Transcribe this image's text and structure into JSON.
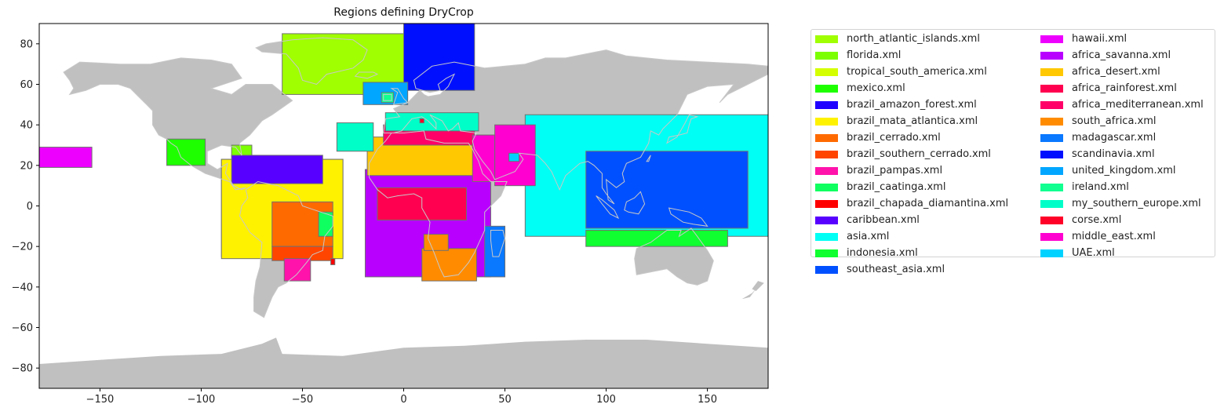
{
  "title": "Regions defining DryCrop",
  "chart_data": {
    "type": "map",
    "title": "Regions defining DryCrop",
    "xlim": [
      -180,
      180
    ],
    "ylim": [
      -90,
      90
    ],
    "xticks": [
      -150,
      -100,
      -50,
      0,
      50,
      100,
      150
    ],
    "yticks": [
      -80,
      -60,
      -40,
      -20,
      0,
      20,
      40,
      60,
      80
    ],
    "land_color": "#c0c0c0",
    "legend_placement": "outside-right",
    "regions": [
      {
        "name": "north_atlantic_islands.xml",
        "color": "#a0ff00",
        "boxes": [
          [
            -60,
            55,
            0,
            85
          ]
        ]
      },
      {
        "name": "florida.xml",
        "color": "#7cff00",
        "boxes": [
          [
            -85,
            24,
            -75,
            30
          ]
        ]
      },
      {
        "name": "tropical_south_america.xml",
        "color": "#d4ff00",
        "boxes": [
          [
            -90,
            -25,
            -30,
            23
          ]
        ]
      },
      {
        "name": "mexico.xml",
        "color": "#1eff00",
        "boxes": [
          [
            -117,
            20,
            -98,
            33
          ]
        ]
      },
      {
        "name": "brazil_amazon_forest.xml",
        "color": "#2000ff",
        "boxes": [
          [
            -55,
            -10,
            -42,
            0
          ]
        ]
      },
      {
        "name": "brazil_mata_atlantica.xml",
        "color": "#fff200",
        "boxes": [
          [
            -90,
            -26,
            -30,
            23
          ]
        ]
      },
      {
        "name": "brazil_cerrado.xml",
        "color": "#ff6a00",
        "boxes": [
          [
            -65,
            -20,
            -35,
            2
          ]
        ]
      },
      {
        "name": "brazil_southern_cerrado.xml",
        "color": "#ff4500",
        "boxes": [
          [
            -65,
            -27,
            -35,
            -20
          ]
        ]
      },
      {
        "name": "brazil_pampas.xml",
        "color": "#ff13ab",
        "boxes": [
          [
            -59,
            -37,
            -46,
            -26
          ]
        ]
      },
      {
        "name": "brazil_caatinga.xml",
        "color": "#10ff60",
        "boxes": [
          [
            -42,
            -15,
            -35,
            -3
          ]
        ]
      },
      {
        "name": "brazil_chapada_diamantina.xml",
        "color": "#ff0000",
        "boxes": [
          [
            -36,
            -29,
            -34,
            -26
          ]
        ]
      },
      {
        "name": "caribbean.xml",
        "color": "#5800ff",
        "boxes": [
          [
            -85,
            11,
            -40,
            25
          ]
        ]
      },
      {
        "name": "asia.xml",
        "color": "#00fff4",
        "boxes": [
          [
            60,
            -15,
            180,
            45
          ]
        ]
      },
      {
        "name": "indonesia.xml",
        "color": "#10ff30",
        "boxes": [
          [
            90,
            -20,
            160,
            -12
          ]
        ]
      },
      {
        "name": "southeast_asia.xml",
        "color": "#0050ff",
        "boxes": [
          [
            90,
            -11,
            170,
            27
          ]
        ]
      },
      {
        "name": "hawaii.xml",
        "color": "#ee00ff",
        "boxes": [
          [
            -180,
            19,
            -154,
            29
          ]
        ]
      },
      {
        "name": "africa_savanna.xml",
        "color": "#b800ff",
        "boxes": [
          [
            -19,
            -35,
            43,
            18
          ]
        ]
      },
      {
        "name": "africa_desert.xml",
        "color": "#ffc800",
        "boxes": [
          [
            -18,
            15,
            60,
            34
          ]
        ]
      },
      {
        "name": "africa_rainforest.xml",
        "color": "#ff0050",
        "boxes": [
          [
            -13,
            -7,
            31,
            9
          ]
        ]
      },
      {
        "name": "africa_mediterranean.xml",
        "color": "#ff0068",
        "boxes": [
          [
            -10,
            30,
            35,
            40
          ]
        ]
      },
      {
        "name": "south_africa.xml",
        "color": "#ff8c00",
        "boxes": [
          [
            9,
            -37,
            36,
            -21
          ],
          [
            10,
            -22,
            22,
            -14
          ]
        ]
      },
      {
        "name": "madagascar.xml",
        "color": "#0a78ff",
        "boxes": [
          [
            40,
            -35,
            50,
            -10
          ]
        ]
      },
      {
        "name": "scandinavia.xml",
        "color": "#0010ff",
        "boxes": [
          [
            0,
            57,
            35,
            90
          ]
        ]
      },
      {
        "name": "united_kingdom.xml",
        "color": "#00a6ff",
        "boxes": [
          [
            -20,
            50,
            2,
            61
          ]
        ]
      },
      {
        "name": "ireland.xml",
        "color": "#10ff90",
        "boxes": [
          [
            -11,
            51,
            -5,
            56
          ]
        ]
      },
      {
        "name": "my_southern_europe.xml",
        "color": "#00ffc8",
        "boxes": [
          [
            -33,
            27,
            -15,
            41
          ],
          [
            -9,
            37,
            37,
            46
          ]
        ]
      },
      {
        "name": "corse.xml",
        "color": "#ff0028",
        "boxes": [
          [
            8,
            41,
            10,
            43
          ]
        ]
      },
      {
        "name": "middle_east.xml",
        "color": "#ff00d0",
        "boxes": [
          [
            34,
            12,
            45,
            35
          ],
          [
            45,
            10,
            65,
            40
          ]
        ]
      },
      {
        "name": "UAE.xml",
        "color": "#00d2ff",
        "boxes": [
          [
            52,
            22,
            57,
            26
          ]
        ]
      }
    ]
  },
  "land": [
    [
      [
        -168,
        66
      ],
      [
        -160,
        71
      ],
      [
        -140,
        70
      ],
      [
        -125,
        70
      ],
      [
        -110,
        73
      ],
      [
        -95,
        72
      ],
      [
        -85,
        70
      ],
      [
        -80,
        63
      ],
      [
        -95,
        58
      ],
      [
        -85,
        55
      ],
      [
        -78,
        60
      ],
      [
        -65,
        60
      ],
      [
        -55,
        52
      ],
      [
        -65,
        45
      ],
      [
        -70,
        42
      ],
      [
        -76,
        35
      ],
      [
        -81,
        31
      ],
      [
        -80,
        25
      ],
      [
        -83,
        29
      ],
      [
        -90,
        30
      ],
      [
        -97,
        27
      ],
      [
        -97,
        21
      ],
      [
        -92,
        18
      ],
      [
        -87,
        21
      ],
      [
        -88,
        16
      ],
      [
        -84,
        10
      ],
      [
        -80,
        8
      ],
      [
        -78,
        9
      ],
      [
        -83,
        8
      ],
      [
        -86,
        12
      ],
      [
        -92,
        14
      ],
      [
        -98,
        16
      ],
      [
        -105,
        20
      ],
      [
        -110,
        24
      ],
      [
        -112,
        29
      ],
      [
        -115,
        31
      ],
      [
        -117,
        33
      ],
      [
        -121,
        35
      ],
      [
        -124,
        40
      ],
      [
        -124,
        47
      ],
      [
        -127,
        50
      ],
      [
        -131,
        54
      ],
      [
        -135,
        58
      ],
      [
        -141,
        60
      ],
      [
        -150,
        60
      ],
      [
        -157,
        57
      ],
      [
        -165,
        55
      ],
      [
        -163,
        58
      ],
      [
        -165,
        62
      ],
      [
        -168,
        66
      ]
    ],
    [
      [
        -78,
        8
      ],
      [
        -72,
        12
      ],
      [
        -62,
        10
      ],
      [
        -52,
        5
      ],
      [
        -50,
        0
      ],
      [
        -44,
        -2
      ],
      [
        -35,
        -5
      ],
      [
        -35,
        -10
      ],
      [
        -39,
        -15
      ],
      [
        -40,
        -22
      ],
      [
        -45,
        -24
      ],
      [
        -48,
        -28
      ],
      [
        -53,
        -34
      ],
      [
        -58,
        -38
      ],
      [
        -62,
        -40
      ],
      [
        -65,
        -45
      ],
      [
        -67,
        -50
      ],
      [
        -69,
        -55
      ],
      [
        -74,
        -52
      ],
      [
        -74,
        -45
      ],
      [
        -73,
        -37
      ],
      [
        -71,
        -30
      ],
      [
        -70,
        -18
      ],
      [
        -76,
        -13
      ],
      [
        -81,
        -5
      ],
      [
        -80,
        0
      ],
      [
        -77,
        4
      ],
      [
        -78,
        8
      ]
    ],
    [
      [
        -17,
        14
      ],
      [
        -17,
        21
      ],
      [
        -13,
        28
      ],
      [
        -9,
        32
      ],
      [
        -6,
        36
      ],
      [
        0,
        36
      ],
      [
        10,
        37
      ],
      [
        11,
        33
      ],
      [
        20,
        31
      ],
      [
        32,
        31
      ],
      [
        34,
        28
      ],
      [
        37,
        22
      ],
      [
        39,
        16
      ],
      [
        43,
        12
      ],
      [
        51,
        12
      ],
      [
        48,
        5
      ],
      [
        40,
        -3
      ],
      [
        40,
        -12
      ],
      [
        35,
        -23
      ],
      [
        32,
        -28
      ],
      [
        27,
        -34
      ],
      [
        20,
        -35
      ],
      [
        18,
        -31
      ],
      [
        15,
        -23
      ],
      [
        12,
        -16
      ],
      [
        13,
        -8
      ],
      [
        9,
        -1
      ],
      [
        9,
        4
      ],
      [
        5,
        6
      ],
      [
        -3,
        5
      ],
      [
        -8,
        4
      ],
      [
        -13,
        8
      ],
      [
        -17,
        14
      ]
    ],
    [
      [
        -10,
        36
      ],
      [
        -9,
        43
      ],
      [
        -2,
        44
      ],
      [
        -5,
        48
      ],
      [
        2,
        51
      ],
      [
        5,
        54
      ],
      [
        8,
        57
      ],
      [
        10,
        55
      ],
      [
        12,
        54
      ],
      [
        18,
        55
      ],
      [
        22,
        59
      ],
      [
        25,
        65
      ],
      [
        21,
        63
      ],
      [
        17,
        60
      ],
      [
        18,
        57
      ],
      [
        13,
        56
      ],
      [
        6,
        58
      ],
      [
        5,
        62
      ],
      [
        14,
        69
      ],
      [
        25,
        71
      ],
      [
        40,
        68
      ],
      [
        50,
        69
      ],
      [
        60,
        70
      ],
      [
        70,
        73
      ],
      [
        80,
        73
      ],
      [
        100,
        77
      ],
      [
        110,
        74
      ],
      [
        130,
        72
      ],
      [
        150,
        71
      ],
      [
        170,
        70
      ],
      [
        180,
        69
      ],
      [
        180,
        65
      ],
      [
        170,
        60
      ],
      [
        160,
        55
      ],
      [
        156,
        51
      ],
      [
        163,
        60
      ],
      [
        150,
        59
      ],
      [
        140,
        55
      ],
      [
        135,
        45
      ],
      [
        128,
        38
      ],
      [
        126,
        35
      ],
      [
        122,
        37
      ],
      [
        121,
        31
      ],
      [
        117,
        24
      ],
      [
        110,
        21
      ],
      [
        108,
        16
      ],
      [
        109,
        12
      ],
      [
        105,
        9
      ],
      [
        100,
        13
      ],
      [
        101,
        3
      ],
      [
        104,
        1
      ],
      [
        100,
        6
      ],
      [
        98,
        9
      ],
      [
        98,
        16
      ],
      [
        94,
        20
      ],
      [
        91,
        22
      ],
      [
        87,
        21
      ],
      [
        80,
        15
      ],
      [
        77,
        8
      ],
      [
        73,
        17
      ],
      [
        70,
        21
      ],
      [
        66,
        25
      ],
      [
        57,
        26
      ],
      [
        59,
        23
      ],
      [
        55,
        17
      ],
      [
        45,
        13
      ],
      [
        43,
        17
      ],
      [
        39,
        22
      ],
      [
        35,
        28
      ],
      [
        34,
        32
      ],
      [
        36,
        36
      ],
      [
        28,
        37
      ],
      [
        27,
        41
      ],
      [
        24,
        38
      ],
      [
        22,
        37
      ],
      [
        19,
        42
      ],
      [
        13,
        45
      ],
      [
        16,
        41
      ],
      [
        16,
        38
      ],
      [
        12,
        42
      ],
      [
        9,
        44
      ],
      [
        4,
        43
      ],
      [
        -1,
        37
      ],
      [
        -5,
        36
      ],
      [
        -10,
        36
      ]
    ],
    [
      [
        -73,
        78
      ],
      [
        -70,
        76
      ],
      [
        -58,
        75
      ],
      [
        -52,
        68
      ],
      [
        -50,
        62
      ],
      [
        -43,
        60
      ],
      [
        -38,
        65
      ],
      [
        -25,
        68
      ],
      [
        -20,
        72
      ],
      [
        -18,
        77
      ],
      [
        -25,
        82
      ],
      [
        -40,
        83
      ],
      [
        -55,
        82
      ],
      [
        -68,
        80
      ],
      [
        -73,
        78
      ]
    ],
    [
      [
        -5,
        50
      ],
      [
        -3,
        56
      ],
      [
        -6,
        58
      ],
      [
        -3,
        58
      ],
      [
        0,
        53
      ],
      [
        2,
        51
      ],
      [
        -5,
        50
      ]
    ],
    [
      [
        -10,
        52
      ],
      [
        -10,
        55
      ],
      [
        -6,
        55
      ],
      [
        -6,
        52
      ],
      [
        -10,
        52
      ]
    ],
    [
      [
        -24,
        64
      ],
      [
        -22,
        66
      ],
      [
        -15,
        66
      ],
      [
        -13,
        65
      ],
      [
        -18,
        63
      ],
      [
        -24,
        64
      ]
    ],
    [
      [
        115,
        -21
      ],
      [
        122,
        -18
      ],
      [
        130,
        -12
      ],
      [
        137,
        -12
      ],
      [
        136,
        -15
      ],
      [
        142,
        -11
      ],
      [
        145,
        -15
      ],
      [
        150,
        -22
      ],
      [
        153,
        -27
      ],
      [
        150,
        -37
      ],
      [
        145,
        -39
      ],
      [
        140,
        -38
      ],
      [
        135,
        -35
      ],
      [
        130,
        -31
      ],
      [
        115,
        -34
      ],
      [
        114,
        -26
      ],
      [
        115,
        -21
      ]
    ],
    [
      [
        131,
        -1
      ],
      [
        141,
        -3
      ],
      [
        147,
        -6
      ],
      [
        150,
        -10
      ],
      [
        143,
        -9
      ],
      [
        138,
        -8
      ],
      [
        132,
        -4
      ],
      [
        131,
        -1
      ]
    ],
    [
      [
        95,
        5
      ],
      [
        98,
        3
      ],
      [
        104,
        -2
      ],
      [
        106,
        -6
      ],
      [
        102,
        -4
      ],
      [
        98,
        1
      ],
      [
        95,
        5
      ]
    ],
    [
      [
        109,
        -2
      ],
      [
        110,
        2
      ],
      [
        114,
        4
      ],
      [
        117,
        7
      ],
      [
        119,
        1
      ],
      [
        116,
        -4
      ],
      [
        111,
        -3
      ],
      [
        109,
        -2
      ]
    ],
    [
      [
        43,
        -12
      ],
      [
        49,
        -12
      ],
      [
        50,
        -16
      ],
      [
        47,
        -25
      ],
      [
        44,
        -25
      ],
      [
        43,
        -17
      ],
      [
        43,
        -12
      ]
    ],
    [
      [
        130,
        31
      ],
      [
        131,
        34
      ],
      [
        136,
        35
      ],
      [
        140,
        36
      ],
      [
        141,
        40
      ],
      [
        142,
        43
      ],
      [
        145,
        44
      ],
      [
        141,
        45
      ],
      [
        139,
        41
      ],
      [
        135,
        34
      ],
      [
        130,
        31
      ]
    ],
    [
      [
        120,
        22
      ],
      [
        122,
        25
      ],
      [
        121,
        22
      ],
      [
        120,
        22
      ]
    ],
    [
      [
        -180,
        -90
      ],
      [
        180,
        -90
      ],
      [
        180,
        -70
      ],
      [
        150,
        -68
      ],
      [
        120,
        -66
      ],
      [
        90,
        -66
      ],
      [
        60,
        -67
      ],
      [
        30,
        -69
      ],
      [
        0,
        -70
      ],
      [
        -30,
        -74
      ],
      [
        -60,
        -73
      ],
      [
        -63,
        -65
      ],
      [
        -70,
        -68
      ],
      [
        -90,
        -73
      ],
      [
        -120,
        -74
      ],
      [
        -150,
        -76
      ],
      [
        -180,
        -78
      ],
      [
        -180,
        -90
      ]
    ],
    [
      [
        172,
        -41
      ],
      [
        175,
        -37
      ],
      [
        178,
        -38
      ],
      [
        174,
        -42
      ],
      [
        172,
        -41
      ]
    ],
    [
      [
        167,
        -46
      ],
      [
        172,
        -43
      ],
      [
        174,
        -41
      ],
      [
        171,
        -45
      ],
      [
        167,
        -46
      ]
    ]
  ]
}
